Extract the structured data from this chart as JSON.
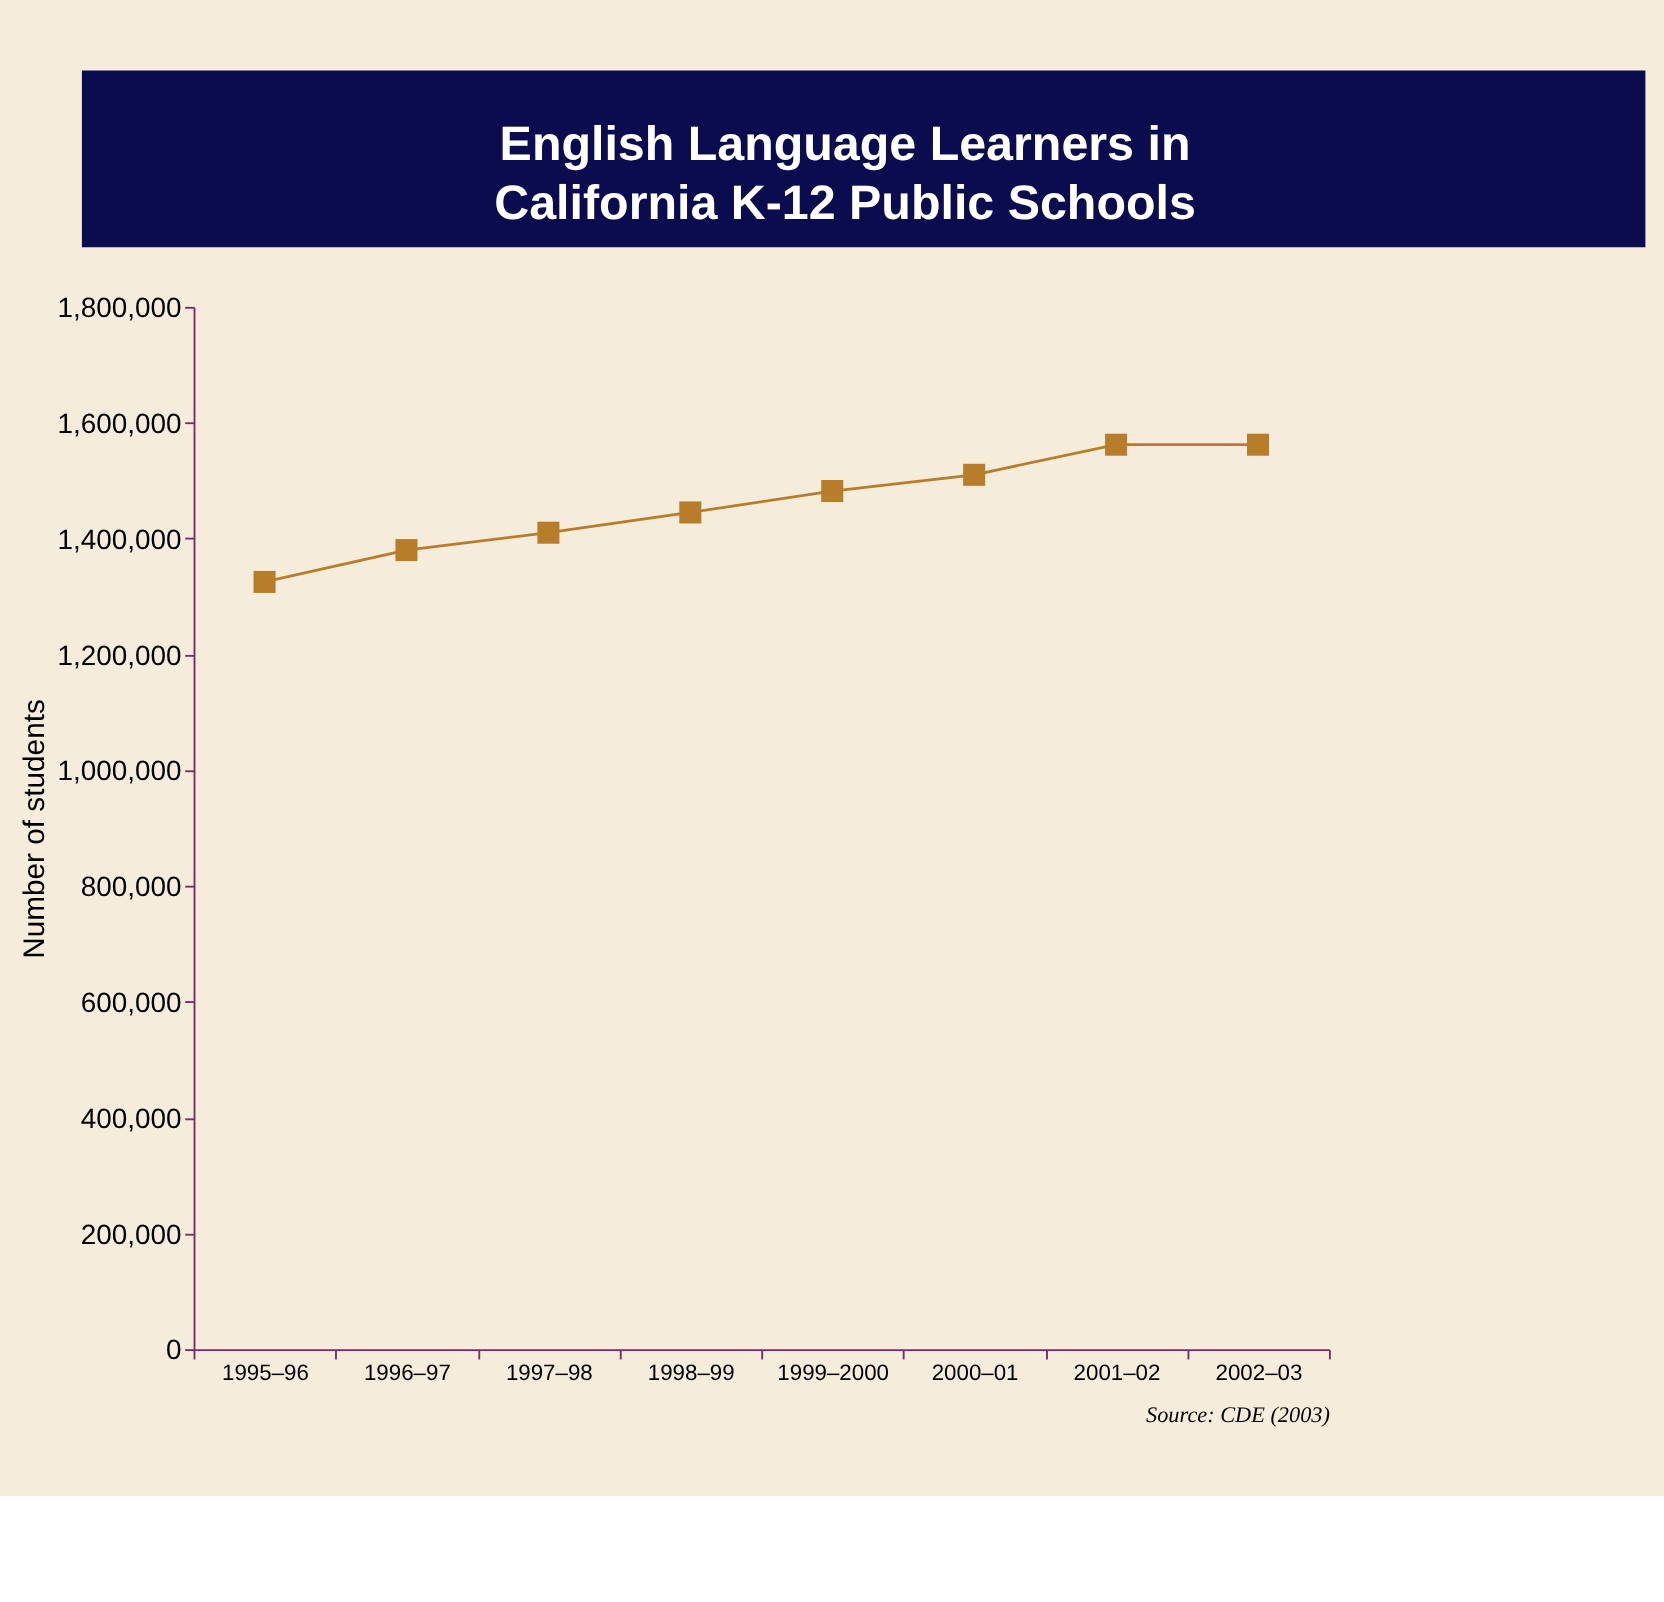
{
  "chart_data": {
    "type": "line",
    "title": "English Language Learners in\nCalifornia K-12 Public Schools",
    "ylabel": "Number of students",
    "categories": [
      "1995–96",
      "1996–97",
      "1997–98",
      "1998–99",
      "1999–2000",
      "2000–01",
      "2001–02",
      "2002–03"
    ],
    "series": [
      {
        "color": "#b87d2a",
        "values": [
          1325000,
          1380000,
          1410000,
          1445000,
          1482000,
          1510000,
          1562000,
          1562000
        ]
      }
    ],
    "ylim": [
      0,
      1800000
    ],
    "yticks": [
      0,
      {
        "value": 200000,
        "label": "200,000"
      },
      {
        "value": 400000,
        "label": "400,000"
      },
      {
        "value": 600000,
        "label": "600,000"
      },
      {
        "value": 800000,
        "label": "800,000"
      },
      {
        "value": 1000000,
        "label": "1,000,000"
      },
      {
        "value": 1200000,
        "label": "1,200,000"
      },
      {
        "value": 1400000,
        "label": "1,400,000"
      },
      {
        "value": 1600000,
        "label": "1,600,000"
      },
      {
        "value": 1800000,
        "label": "1,800,000"
      }
    ],
    "grid": false,
    "marker": "square",
    "line_style": "solid",
    "annotations": [
      "Source: CDE (2003)"
    ]
  }
}
